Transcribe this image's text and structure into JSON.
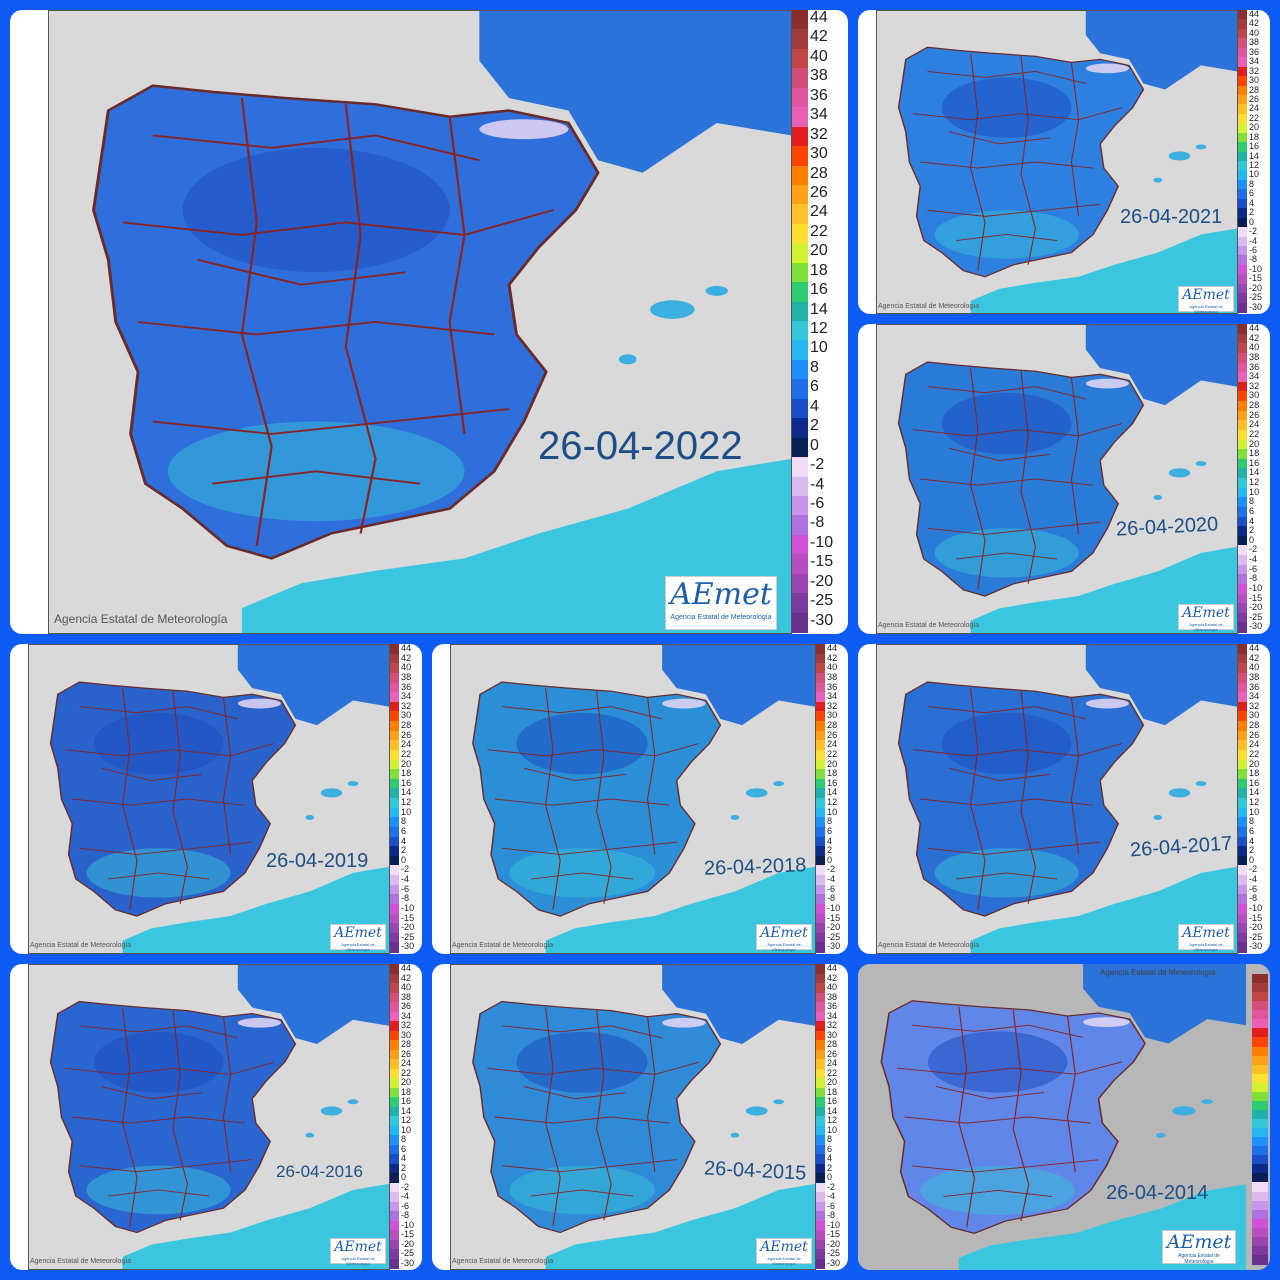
{
  "copyright_text": "Agencia Estatal de Meteorología",
  "logo": {
    "text": "AEmet",
    "subtitle": "Agencia Estatal de Meteorología"
  },
  "colors": {
    "background": "#0d5cf5",
    "sea_fill": "#d9d9d9",
    "land_fill": "#3a7be0",
    "border_line": "#8b2323",
    "date_text": "#1f4e86"
  },
  "legend_labels": [
    "44",
    "42",
    "40",
    "38",
    "36",
    "34",
    "32",
    "30",
    "28",
    "26",
    "24",
    "22",
    "20",
    "18",
    "16",
    "14",
    "12",
    "10",
    "8",
    "6",
    "4",
    "2",
    "0",
    "-2",
    "-4",
    "-6",
    "-8",
    "-10",
    "-15",
    "-20",
    "-25",
    "-30"
  ],
  "legend_colors": [
    "#8b2e2e",
    "#a33b3b",
    "#c04545",
    "#d44e7a",
    "#e0559c",
    "#ea5fb8",
    "#e11d1d",
    "#ff4500",
    "#ff7f00",
    "#ff9f1a",
    "#ffbf26",
    "#ffdf33",
    "#d4f033",
    "#7fe03a",
    "#2ecc71",
    "#20b2aa",
    "#33c6d9",
    "#25b8f0",
    "#1e90ff",
    "#1e6fe8",
    "#1a4fc9",
    "#0b2a8a",
    "#0a1e55",
    "#f0dcf5",
    "#dcbaf0",
    "#c795ea",
    "#b070e0",
    "#d24fd8",
    "#b84fc0",
    "#9a44b0",
    "#7d3aa0",
    "#6b2f90"
  ],
  "maps": [
    {
      "id": "2022",
      "date": "26-04-2022",
      "land": "#2f6fdc"
    },
    {
      "id": "2021",
      "date": "26-04-2021",
      "land": "#2d7fe0"
    },
    {
      "id": "2020",
      "date": "26-04-2020",
      "land": "#2a7ad8"
    },
    {
      "id": "2019",
      "date": "26-04-2019",
      "land": "#2a62cc"
    },
    {
      "id": "2018",
      "date": "26-04-2018",
      "land": "#2b8fd8"
    },
    {
      "id": "2017",
      "date": "26-04-2017",
      "land": "#2a6fd4"
    },
    {
      "id": "2016",
      "date": "26-04-2016",
      "land": "#2a66d0"
    },
    {
      "id": "2015",
      "date": "26-04-2015",
      "land": "#2f8ad8"
    },
    {
      "id": "2014",
      "date": "26-04-2014",
      "land": "#5f86e8"
    }
  ]
}
